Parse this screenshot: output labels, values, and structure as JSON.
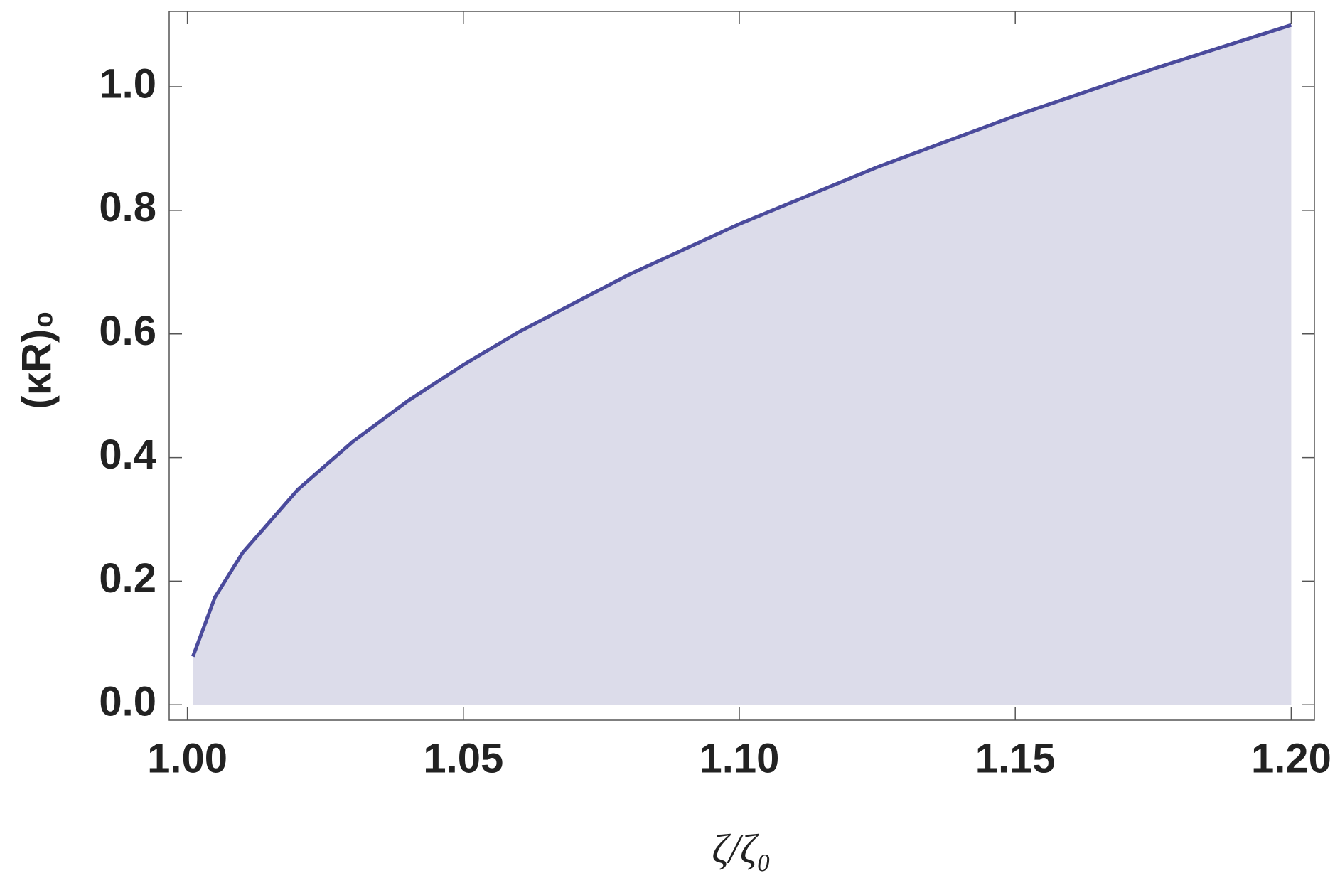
{
  "chart_data": {
    "type": "area",
    "xlabel": "ζ/ζ₀",
    "ylabel": "(κR)₀",
    "x": [
      1.001,
      1.005,
      1.01,
      1.02,
      1.03,
      1.04,
      1.05,
      1.06,
      1.08,
      1.1,
      1.125,
      1.15,
      1.175,
      1.2
    ],
    "series": [
      {
        "color": "#4b4b9c",
        "values": [
          0.078,
          0.174,
          0.246,
          0.348,
          0.426,
          0.492,
          0.55,
          0.603,
          0.696,
          0.778,
          0.87,
          0.953,
          1.029,
          1.1
        ]
      }
    ],
    "fill_color": "#dcdcea",
    "xlim": [
      0.9967,
      1.2042
    ],
    "ylim": [
      -0.025,
      1.122
    ],
    "xticks": [
      {
        "value": 1,
        "label": "1.00"
      },
      {
        "value": 1.05,
        "label": "1.05"
      },
      {
        "value": 1.1,
        "label": "1.10"
      },
      {
        "value": 1.15,
        "label": "1.15"
      },
      {
        "value": 1.2,
        "label": "1.20"
      }
    ],
    "yticks": [
      {
        "value": 0,
        "label": "0.0"
      },
      {
        "value": 0.2,
        "label": "0.2"
      },
      {
        "value": 0.4,
        "label": "0.4"
      },
      {
        "value": 0.6,
        "label": "0.6"
      },
      {
        "value": 0.8,
        "label": "0.8"
      },
      {
        "value": 1,
        "label": "1.0"
      }
    ],
    "grid": false
  }
}
